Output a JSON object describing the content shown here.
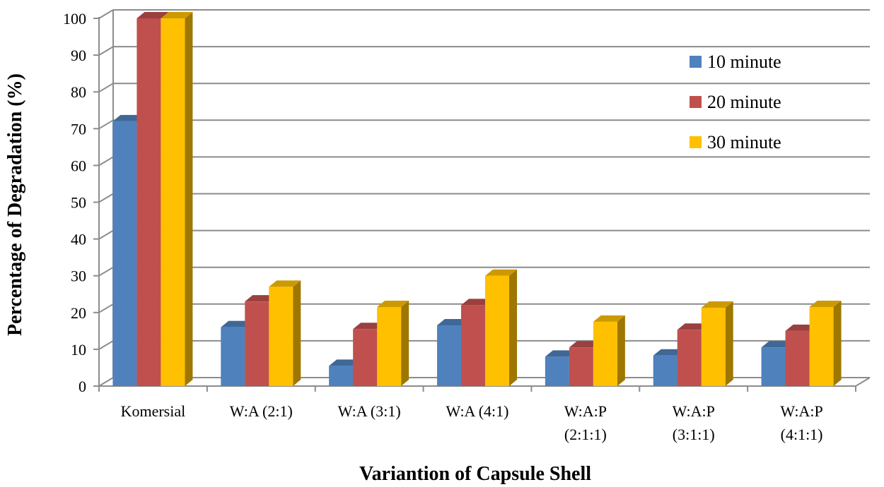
{
  "chart_data": {
    "type": "bar",
    "style": "3d-clustered-column",
    "title": "",
    "xlabel": "Variantion of Capsule Shell",
    "ylabel": "Percentage of Degradation (%)",
    "ylim": [
      0,
      100
    ],
    "yticks": [
      "0",
      "10",
      "20",
      "30",
      "40",
      "50",
      "60",
      "70",
      "80",
      "90",
      "100"
    ],
    "grid": true,
    "legend_position": "right",
    "categories": [
      [
        "Komersial"
      ],
      [
        "W:A (2:1)"
      ],
      [
        "W:A (3:1)"
      ],
      [
        "W:A (4:1)"
      ],
      [
        "W:A:P",
        "(2:1:1)"
      ],
      [
        "W:A:P",
        "(3:1:1)"
      ],
      [
        "W:A:P",
        "(4:1:1)"
      ]
    ],
    "series": [
      {
        "name": "10 minute",
        "color": "#4f81bd",
        "values": [
          72,
          16,
          5.5,
          16.5,
          8,
          8.3,
          10.5
        ]
      },
      {
        "name": "20 minute",
        "color": "#c0504d",
        "values": [
          100,
          23,
          15.5,
          22,
          10.5,
          15.3,
          15
        ]
      },
      {
        "name": "30 minute",
        "color": "#ffc000",
        "values": [
          100,
          27,
          21.5,
          30,
          17.5,
          21.3,
          21.5
        ]
      }
    ]
  }
}
